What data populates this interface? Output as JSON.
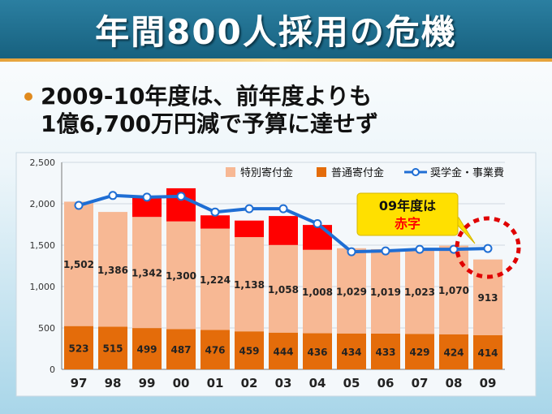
{
  "header": {
    "title": "年間800人採用の危機"
  },
  "headline": {
    "line1": "2009-10年度は、前年度よりも",
    "line2": "1億6,700万円減で予算に達せず"
  },
  "colors": {
    "special": "#f7b894",
    "general": "#e46c0a",
    "deficit": "#ff0000",
    "line": "#1f6ed4",
    "callout_bg": "#ffe000",
    "callout_red": "#ff0000"
  },
  "chart_data": {
    "type": "bar",
    "stacked": true,
    "categories": [
      "97",
      "98",
      "99",
      "00",
      "01",
      "02",
      "03",
      "04",
      "05",
      "06",
      "07",
      "08",
      "09"
    ],
    "series": [
      {
        "name": "普通寄付金",
        "values": [
          523,
          515,
          499,
          487,
          476,
          459,
          444,
          436,
          434,
          433,
          429,
          424,
          414
        ],
        "color": "#e46c0a"
      },
      {
        "name": "特別寄付金",
        "values": [
          1502,
          1386,
          1342,
          1300,
          1224,
          1138,
          1058,
          1008,
          1029,
          1019,
          1023,
          1070,
          913
        ],
        "color": "#f7b894"
      }
    ],
    "deficit": [
      0,
      0,
      250,
      400,
      160,
      200,
      350,
      300,
      0,
      0,
      0,
      0,
      0
    ],
    "deficit_color": "#ff0000",
    "line": {
      "name": "奨学金・事業費",
      "values": [
        1980,
        2100,
        2080,
        2090,
        1900,
        1940,
        1940,
        1760,
        1420,
        1430,
        1450,
        1450,
        1460
      ],
      "color": "#1f6ed4"
    },
    "ylim": [
      0,
      2500
    ],
    "yticks": [
      "0",
      "500",
      "1,000",
      "1,500",
      "2,000",
      "2,500"
    ],
    "legend": [
      "特別寄付金",
      "普通寄付金",
      "奨学金・事業費"
    ],
    "legend_position": "top-right",
    "callout": {
      "line1": "09年度は",
      "line2": "赤字"
    }
  }
}
